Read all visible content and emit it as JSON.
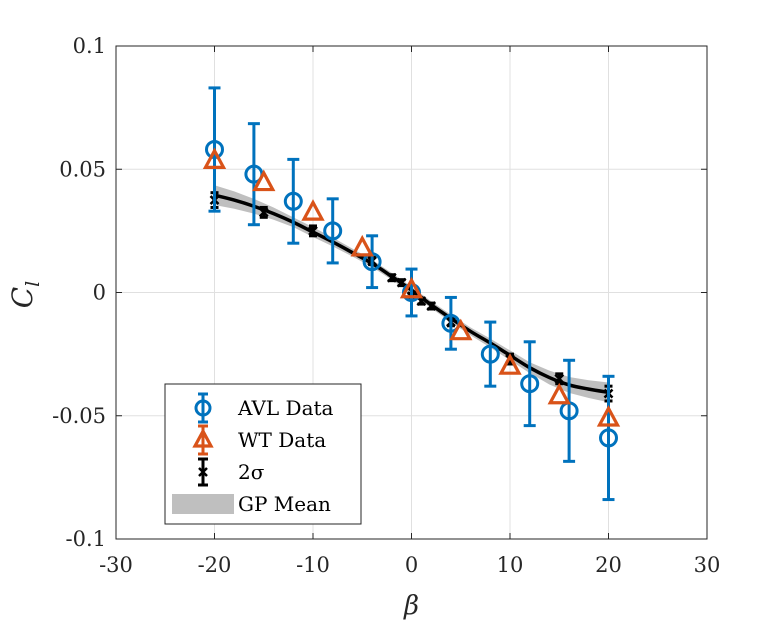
{
  "chart_data": {
    "type": "scatter",
    "title": "",
    "xlabel": "β",
    "ylabel_main": "C",
    "ylabel_sub": "l",
    "xlim": [
      -30,
      30
    ],
    "ylim": [
      -0.1,
      0.1
    ],
    "xticks": [
      -30,
      -20,
      -10,
      0,
      10,
      20,
      30
    ],
    "xtick_labels": [
      "-30",
      "-20",
      "-10",
      "0",
      "10",
      "20",
      "30"
    ],
    "yticks": [
      -0.1,
      -0.05,
      0,
      0.05,
      0.1
    ],
    "ytick_labels": [
      "-0.1",
      "-0.05",
      "0",
      "0.05",
      "0.1"
    ],
    "grid": true,
    "legend_position": "bottom-left",
    "colors": {
      "avl": "#0072BD",
      "wt": "#D95319",
      "sigma": "#000000",
      "gp_band": "#BFBFBF",
      "gp_mean": "#000000",
      "grid": "#E0E0E0",
      "axes": "#262626"
    },
    "legend": [
      {
        "label": "AVL Data",
        "series": "avl"
      },
      {
        "label": "WT Data",
        "series": "wt"
      },
      {
        "label": "2σ",
        "series": "sigma"
      },
      {
        "label": "GP Mean",
        "series": "gp"
      }
    ],
    "series": [
      {
        "key": "avl",
        "name": "AVL Data",
        "marker": "circle",
        "x": [
          -20,
          -16,
          -12,
          -8,
          -4,
          0,
          4,
          8,
          12,
          16,
          20
        ],
        "y": [
          0.058,
          0.048,
          0.037,
          0.025,
          0.0125,
          0.0,
          -0.0125,
          -0.025,
          -0.037,
          -0.048,
          -0.059
        ],
        "err": [
          0.025,
          0.0205,
          0.017,
          0.013,
          0.0105,
          0.0095,
          0.0105,
          0.013,
          0.017,
          0.0205,
          0.025
        ]
      },
      {
        "key": "wt",
        "name": "WT Data",
        "marker": "triangle",
        "x": [
          -20,
          -15,
          -10,
          -5,
          0,
          5,
          10,
          15,
          20
        ],
        "y": [
          0.0535,
          0.0445,
          0.0325,
          0.018,
          0.001,
          -0.016,
          -0.03,
          -0.042,
          -0.051
        ]
      },
      {
        "key": "sigma",
        "name": "2σ",
        "marker": "x",
        "x": [
          -20,
          -15,
          -10,
          -4,
          -2,
          -1,
          0,
          1,
          2,
          4,
          10,
          15,
          20
        ],
        "y": [
          0.0375,
          0.0325,
          0.025,
          0.0128,
          0.006,
          0.004,
          -0.0015,
          -0.0035,
          -0.0055,
          -0.012,
          -0.027,
          -0.035,
          -0.041
        ],
        "err": [
          0.003,
          0.002,
          0.002,
          0.0015,
          0.0012,
          0.0012,
          0.0012,
          0.0012,
          0.0012,
          0.0015,
          0.002,
          0.002,
          0.003
        ]
      },
      {
        "key": "gp",
        "name": "GP Mean",
        "type": "line",
        "x": [
          -20,
          -18,
          -16,
          -14,
          -12,
          -10,
          -8,
          -6,
          -4,
          -2,
          0,
          2,
          4,
          6,
          8,
          10,
          12,
          14,
          16,
          18,
          20
        ],
        "y": [
          0.0395,
          0.0375,
          0.035,
          0.032,
          0.0285,
          0.0245,
          0.0205,
          0.0162,
          0.0118,
          0.0065,
          0.001,
          -0.005,
          -0.0105,
          -0.0158,
          -0.0205,
          -0.0255,
          -0.0305,
          -0.0345,
          -0.0375,
          -0.0392,
          -0.0405
        ],
        "band": [
          0.004,
          0.0035,
          0.003,
          0.0025,
          0.002,
          0.002,
          0.0018,
          0.0016,
          0.0015,
          0.0014,
          0.0014,
          0.0014,
          0.0015,
          0.0016,
          0.0018,
          0.002,
          0.0022,
          0.0028,
          0.0032,
          0.0036,
          0.004
        ]
      }
    ]
  }
}
